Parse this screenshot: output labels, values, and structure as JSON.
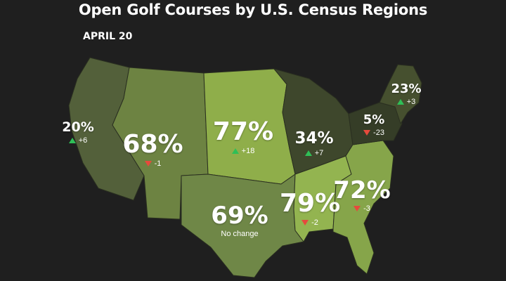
{
  "title": "Open Golf Courses by U.S. Census Regions",
  "date_label": "APRIL 20",
  "regions": [
    {
      "id": "pacific",
      "percent": "20%",
      "change": "+6",
      "direction": "up",
      "color": "#53603a"
    },
    {
      "id": "mountain",
      "percent": "68%",
      "change": "-1",
      "direction": "down",
      "color": "#6d8342"
    },
    {
      "id": "west-north-central",
      "percent": "77%",
      "change": "+18",
      "direction": "up",
      "color": "#8fae4a"
    },
    {
      "id": "east-north-central",
      "percent": "34%",
      "change": "+7",
      "direction": "up",
      "color": "#3e472c"
    },
    {
      "id": "west-south-central",
      "percent": "69%",
      "change": "No change",
      "direction": "none",
      "color": "#6f8747"
    },
    {
      "id": "east-south-central",
      "percent": "79%",
      "change": "-2",
      "direction": "down",
      "color": "#93b450"
    },
    {
      "id": "south-atlantic",
      "percent": "72%",
      "change": "-3",
      "direction": "down",
      "color": "#86a54a"
    },
    {
      "id": "middle-atlantic",
      "percent": "5%",
      "change": "-23",
      "direction": "down",
      "color": "#353d27"
    },
    {
      "id": "new-england",
      "percent": "23%",
      "change": "+3",
      "direction": "up",
      "color": "#46502f"
    }
  ]
}
